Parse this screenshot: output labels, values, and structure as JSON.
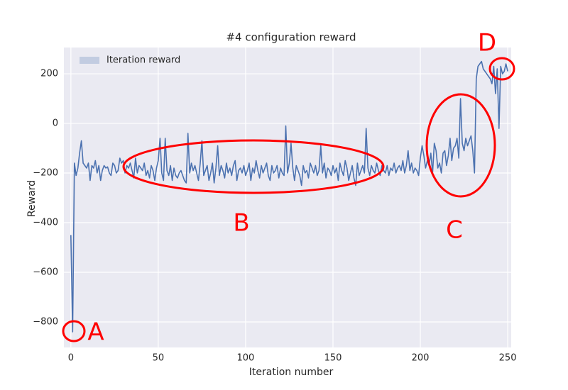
{
  "chart_data": {
    "type": "line",
    "title": "#4 configuration reward",
    "xlabel": "Iteration number",
    "ylabel": "Reward",
    "xlim": [
      -4,
      252
    ],
    "ylim": [
      -903,
      306
    ],
    "xticks": [
      0,
      50,
      100,
      150,
      200,
      250
    ],
    "yticks": [
      {
        "value": -800,
        "label": "−800"
      },
      {
        "value": -600,
        "label": "−600"
      },
      {
        "value": -400,
        "label": "−400"
      },
      {
        "value": -200,
        "label": "−200"
      },
      0,
      200
    ],
    "grid": true,
    "legend": "upper left",
    "annotations": [
      "A",
      "B",
      "C",
      "D"
    ],
    "x": [
      0,
      1,
      2,
      3,
      4,
      5,
      6,
      7,
      8,
      9,
      10,
      11,
      12,
      13,
      14,
      15,
      16,
      17,
      18,
      19,
      20,
      21,
      22,
      23,
      24,
      25,
      26,
      27,
      28,
      29,
      30,
      31,
      32,
      33,
      34,
      35,
      36,
      37,
      38,
      39,
      40,
      41,
      42,
      43,
      44,
      45,
      46,
      47,
      48,
      49,
      50,
      51,
      52,
      53,
      54,
      55,
      56,
      57,
      58,
      59,
      60,
      61,
      62,
      63,
      64,
      65,
      66,
      67,
      68,
      69,
      70,
      71,
      72,
      73,
      74,
      75,
      76,
      77,
      78,
      79,
      80,
      81,
      82,
      83,
      84,
      85,
      86,
      87,
      88,
      89,
      90,
      91,
      92,
      93,
      94,
      95,
      96,
      97,
      98,
      99,
      100,
      101,
      102,
      103,
      104,
      105,
      106,
      107,
      108,
      109,
      110,
      111,
      112,
      113,
      114,
      115,
      116,
      117,
      118,
      119,
      120,
      121,
      122,
      123,
      124,
      125,
      126,
      127,
      128,
      129,
      130,
      131,
      132,
      133,
      134,
      135,
      136,
      137,
      138,
      139,
      140,
      141,
      142,
      143,
      144,
      145,
      146,
      147,
      148,
      149,
      150,
      151,
      152,
      153,
      154,
      155,
      156,
      157,
      158,
      159,
      160,
      161,
      162,
      163,
      164,
      165,
      166,
      167,
      168,
      169,
      170,
      171,
      172,
      173,
      174,
      175,
      176,
      177,
      178,
      179,
      180,
      181,
      182,
      183,
      184,
      185,
      186,
      187,
      188,
      189,
      190,
      191,
      192,
      193,
      194,
      195,
      196,
      197,
      198,
      199,
      200,
      201,
      202,
      203,
      204,
      205,
      206,
      207,
      208,
      209,
      210,
      211,
      212,
      213,
      214,
      215,
      216,
      217,
      218,
      219,
      220,
      221,
      222,
      223,
      224,
      225,
      226,
      227,
      228,
      229,
      230,
      231,
      232,
      233,
      234,
      235,
      236,
      237,
      238,
      239,
      240,
      241,
      242,
      243,
      244,
      245,
      246,
      247,
      248,
      249,
      250
    ],
    "series": [
      {
        "name": "Iteration reward",
        "color": "#4c72b0",
        "values": [
          -450,
          -840,
          -160,
          -210,
          -180,
          -120,
          -70,
          -160,
          -170,
          -180,
          -160,
          -230,
          -170,
          -180,
          -150,
          -200,
          -170,
          -230,
          -190,
          -170,
          -180,
          -175,
          -200,
          -210,
          -160,
          -170,
          -200,
          -190,
          -140,
          -160,
          -150,
          -200,
          -170,
          -180,
          -160,
          -190,
          -220,
          -140,
          -200,
          -170,
          -180,
          -190,
          -160,
          -210,
          -190,
          -220,
          -170,
          -190,
          -230,
          -180,
          -150,
          -60,
          -200,
          -230,
          -60,
          -190,
          -210,
          -170,
          -230,
          -180,
          -210,
          -220,
          -200,
          -190,
          -210,
          -230,
          -240,
          -40,
          -200,
          -160,
          -190,
          -170,
          -200,
          -230,
          -160,
          -70,
          -210,
          -190,
          -170,
          -230,
          -200,
          -160,
          -240,
          -180,
          -90,
          -210,
          -170,
          -190,
          -220,
          -160,
          -200,
          -180,
          -210,
          -170,
          -150,
          -230,
          -190,
          -180,
          -200,
          -170,
          -210,
          -190,
          -160,
          -230,
          -180,
          -200,
          -150,
          -190,
          -220,
          -170,
          -200,
          -180,
          -160,
          -210,
          -230,
          -170,
          -200,
          -190,
          -170,
          -220,
          -180,
          -200,
          -210,
          -10,
          -200,
          -160,
          -80,
          -180,
          -230,
          -170,
          -190,
          -210,
          -250,
          -170,
          -200,
          -190,
          -220,
          -160,
          -180,
          -200,
          -170,
          -210,
          -190,
          -90,
          -200,
          -160,
          -220,
          -180,
          -190,
          -210,
          -170,
          -200,
          -180,
          -230,
          -160,
          -190,
          -210,
          -150,
          -180,
          -230,
          -200,
          -170,
          -220,
          -250,
          -160,
          -210,
          -190,
          -170,
          -200,
          -20,
          -180,
          -210,
          -170,
          -190,
          -200,
          -160,
          -190,
          -210,
          -170,
          -190,
          -200,
          -170,
          -210,
          -180,
          -190,
          -160,
          -200,
          -180,
          -170,
          -190,
          -150,
          -200,
          -170,
          -110,
          -190,
          -160,
          -200,
          -180,
          -190,
          -210,
          -140,
          -90,
          -130,
          -180,
          -150,
          -170,
          -120,
          -200,
          -80,
          -110,
          -180,
          -160,
          -200,
          -120,
          -110,
          -170,
          -130,
          -60,
          -150,
          -100,
          -90,
          -60,
          -140,
          100,
          -80,
          -110,
          -60,
          -90,
          -70,
          -50,
          -110,
          -200,
          180,
          230,
          240,
          250,
          220,
          210,
          200,
          190,
          180,
          160,
          230,
          120,
          220,
          -20,
          230,
          200,
          210,
          240,
          210
        ]
      }
    ]
  }
}
